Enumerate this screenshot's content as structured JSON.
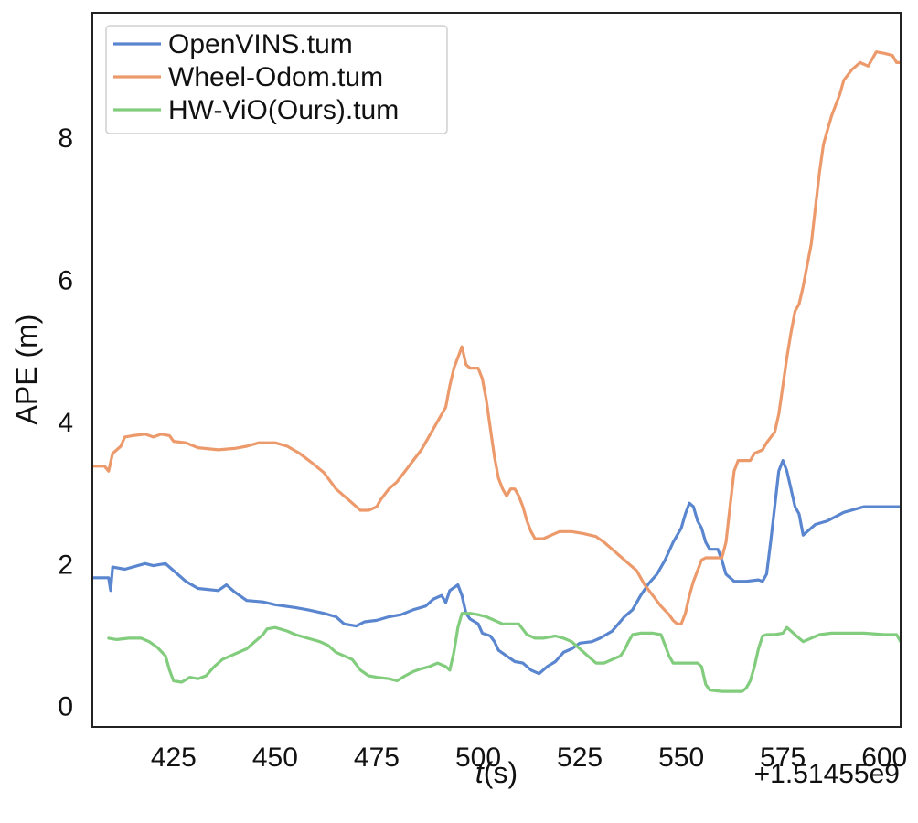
{
  "chart_data": {
    "type": "line",
    "title": "",
    "xlabel_italic": "t",
    "xlabel_rest": "(s)",
    "ylabel": "APE (m)",
    "x_offset_label": "+1.51455e9",
    "xlim": [
      405,
      604
    ],
    "ylim": [
      -0.3,
      9.75
    ],
    "xticks": [
      425,
      450,
      475,
      500,
      525,
      550,
      575,
      600
    ],
    "yticks": [
      0,
      2,
      4,
      6,
      8
    ],
    "grid": false,
    "legend_position": "top-left",
    "series": [
      {
        "name": "OpenVINS.tum",
        "color": "#5a86cf",
        "points": [
          [
            405,
            1.8
          ],
          [
            409,
            1.8
          ],
          [
            409.5,
            1.62
          ],
          [
            410,
            1.95
          ],
          [
            413,
            1.92
          ],
          [
            418,
            2.0
          ],
          [
            420,
            1.97
          ],
          [
            423,
            2.0
          ],
          [
            425,
            1.9
          ],
          [
            428,
            1.75
          ],
          [
            431,
            1.65
          ],
          [
            436,
            1.62
          ],
          [
            438,
            1.7
          ],
          [
            440,
            1.6
          ],
          [
            443,
            1.48
          ],
          [
            447,
            1.46
          ],
          [
            450,
            1.42
          ],
          [
            455,
            1.38
          ],
          [
            458,
            1.35
          ],
          [
            462,
            1.3
          ],
          [
            465,
            1.25
          ],
          [
            467,
            1.15
          ],
          [
            470,
            1.12
          ],
          [
            472,
            1.18
          ],
          [
            475,
            1.2
          ],
          [
            478,
            1.25
          ],
          [
            481,
            1.28
          ],
          [
            484,
            1.35
          ],
          [
            487,
            1.4
          ],
          [
            489,
            1.5
          ],
          [
            491,
            1.55
          ],
          [
            492,
            1.45
          ],
          [
            493,
            1.62
          ],
          [
            495,
            1.7
          ],
          [
            496,
            1.55
          ],
          [
            497,
            1.3
          ],
          [
            498,
            1.22
          ],
          [
            500,
            1.15
          ],
          [
            501,
            1.02
          ],
          [
            503,
            0.98
          ],
          [
            504,
            0.9
          ],
          [
            505,
            0.78
          ],
          [
            507,
            0.7
          ],
          [
            509,
            0.62
          ],
          [
            511,
            0.6
          ],
          [
            513,
            0.5
          ],
          [
            515,
            0.45
          ],
          [
            517,
            0.55
          ],
          [
            519,
            0.62
          ],
          [
            521,
            0.75
          ],
          [
            523,
            0.8
          ],
          [
            525,
            0.88
          ],
          [
            528,
            0.9
          ],
          [
            530,
            0.95
          ],
          [
            533,
            1.05
          ],
          [
            536,
            1.25
          ],
          [
            538,
            1.35
          ],
          [
            540,
            1.55
          ],
          [
            542,
            1.72
          ],
          [
            544,
            1.85
          ],
          [
            546,
            2.05
          ],
          [
            548,
            2.3
          ],
          [
            550,
            2.5
          ],
          [
            551,
            2.7
          ],
          [
            552,
            2.85
          ],
          [
            553,
            2.8
          ],
          [
            554,
            2.6
          ],
          [
            555,
            2.5
          ],
          [
            556,
            2.3
          ],
          [
            557,
            2.2
          ],
          [
            558,
            2.2
          ],
          [
            559,
            2.2
          ],
          [
            560,
            2.05
          ],
          [
            561,
            1.85
          ],
          [
            563,
            1.75
          ],
          [
            566,
            1.75
          ],
          [
            569,
            1.77
          ],
          [
            570,
            1.75
          ],
          [
            571,
            1.85
          ],
          [
            572,
            2.3
          ],
          [
            573,
            2.8
          ],
          [
            574,
            3.3
          ],
          [
            575,
            3.45
          ],
          [
            576,
            3.3
          ],
          [
            577,
            3.05
          ],
          [
            578,
            2.8
          ],
          [
            579,
            2.7
          ],
          [
            580,
            2.4
          ],
          [
            581,
            2.45
          ],
          [
            583,
            2.55
          ],
          [
            586,
            2.6
          ],
          [
            590,
            2.72
          ],
          [
            595,
            2.8
          ],
          [
            600,
            2.8
          ],
          [
            604,
            2.8
          ]
        ]
      },
      {
        "name": "Wheel-Odom.tum",
        "color": "#ec9a6b",
        "points": [
          [
            405,
            3.37
          ],
          [
            408,
            3.37
          ],
          [
            409,
            3.3
          ],
          [
            410,
            3.55
          ],
          [
            412,
            3.65
          ],
          [
            413,
            3.78
          ],
          [
            415,
            3.8
          ],
          [
            418,
            3.82
          ],
          [
            420,
            3.78
          ],
          [
            422,
            3.82
          ],
          [
            424,
            3.8
          ],
          [
            425,
            3.72
          ],
          [
            428,
            3.7
          ],
          [
            431,
            3.63
          ],
          [
            436,
            3.6
          ],
          [
            440,
            3.62
          ],
          [
            443,
            3.65
          ],
          [
            446,
            3.7
          ],
          [
            450,
            3.7
          ],
          [
            453,
            3.65
          ],
          [
            456,
            3.55
          ],
          [
            459,
            3.42
          ],
          [
            462,
            3.28
          ],
          [
            465,
            3.05
          ],
          [
            467,
            2.95
          ],
          [
            469,
            2.85
          ],
          [
            471,
            2.75
          ],
          [
            473,
            2.75
          ],
          [
            475,
            2.8
          ],
          [
            476,
            2.9
          ],
          [
            478,
            3.05
          ],
          [
            480,
            3.15
          ],
          [
            482,
            3.3
          ],
          [
            484,
            3.45
          ],
          [
            486,
            3.6
          ],
          [
            488,
            3.8
          ],
          [
            490,
            4.0
          ],
          [
            492,
            4.2
          ],
          [
            493,
            4.5
          ],
          [
            494,
            4.75
          ],
          [
            495,
            4.9
          ],
          [
            496,
            5.05
          ],
          [
            497,
            4.8
          ],
          [
            498,
            4.75
          ],
          [
            500,
            4.75
          ],
          [
            501,
            4.6
          ],
          [
            502,
            4.3
          ],
          [
            503,
            3.9
          ],
          [
            504,
            3.5
          ],
          [
            505,
            3.2
          ],
          [
            506,
            3.05
          ],
          [
            507,
            2.95
          ],
          [
            508,
            3.05
          ],
          [
            509,
            3.05
          ],
          [
            510,
            2.95
          ],
          [
            511,
            2.8
          ],
          [
            512,
            2.6
          ],
          [
            513,
            2.45
          ],
          [
            514,
            2.35
          ],
          [
            516,
            2.35
          ],
          [
            518,
            2.4
          ],
          [
            520,
            2.45
          ],
          [
            523,
            2.45
          ],
          [
            526,
            2.42
          ],
          [
            529,
            2.38
          ],
          [
            531,
            2.3
          ],
          [
            533,
            2.2
          ],
          [
            535,
            2.1
          ],
          [
            537,
            2.0
          ],
          [
            539,
            1.9
          ],
          [
            541,
            1.7
          ],
          [
            543,
            1.55
          ],
          [
            545,
            1.4
          ],
          [
            547,
            1.28
          ],
          [
            548,
            1.2
          ],
          [
            549,
            1.15
          ],
          [
            550,
            1.15
          ],
          [
            551,
            1.3
          ],
          [
            552,
            1.55
          ],
          [
            553,
            1.75
          ],
          [
            554,
            1.9
          ],
          [
            555,
            2.05
          ],
          [
            556,
            2.08
          ],
          [
            558,
            2.08
          ],
          [
            560,
            2.08
          ],
          [
            561,
            2.3
          ],
          [
            562,
            2.8
          ],
          [
            563,
            3.3
          ],
          [
            564,
            3.45
          ],
          [
            567,
            3.45
          ],
          [
            568,
            3.55
          ],
          [
            570,
            3.6
          ],
          [
            571,
            3.7
          ],
          [
            573,
            3.85
          ],
          [
            574,
            4.1
          ],
          [
            575,
            4.5
          ],
          [
            576,
            4.9
          ],
          [
            577,
            5.25
          ],
          [
            578,
            5.55
          ],
          [
            579,
            5.65
          ],
          [
            580,
            5.9
          ],
          [
            581,
            6.2
          ],
          [
            582,
            6.5
          ],
          [
            583,
            7.0
          ],
          [
            584,
            7.5
          ],
          [
            585,
            7.9
          ],
          [
            586,
            8.1
          ],
          [
            587,
            8.3
          ],
          [
            588,
            8.45
          ],
          [
            589,
            8.6
          ],
          [
            590,
            8.8
          ],
          [
            592,
            8.95
          ],
          [
            594,
            9.05
          ],
          [
            596,
            9.0
          ],
          [
            597,
            9.1
          ],
          [
            598,
            9.2
          ],
          [
            600,
            9.18
          ],
          [
            602,
            9.15
          ],
          [
            603,
            9.05
          ],
          [
            604,
            9.05
          ]
        ]
      },
      {
        "name": "HW-ViO(Ours).tum",
        "color": "#82cc7d",
        "points": [
          [
            409,
            0.95
          ],
          [
            411,
            0.93
          ],
          [
            414,
            0.95
          ],
          [
            417,
            0.95
          ],
          [
            419,
            0.9
          ],
          [
            421,
            0.82
          ],
          [
            423,
            0.7
          ],
          [
            424,
            0.5
          ],
          [
            425,
            0.35
          ],
          [
            427,
            0.33
          ],
          [
            429,
            0.4
          ],
          [
            431,
            0.38
          ],
          [
            433,
            0.42
          ],
          [
            435,
            0.55
          ],
          [
            437,
            0.65
          ],
          [
            439,
            0.7
          ],
          [
            441,
            0.75
          ],
          [
            443,
            0.8
          ],
          [
            445,
            0.9
          ],
          [
            447,
            1.0
          ],
          [
            448,
            1.08
          ],
          [
            450,
            1.1
          ],
          [
            453,
            1.05
          ],
          [
            455,
            1.0
          ],
          [
            458,
            0.95
          ],
          [
            461,
            0.9
          ],
          [
            463,
            0.85
          ],
          [
            465,
            0.75
          ],
          [
            467,
            0.7
          ],
          [
            469,
            0.65
          ],
          [
            471,
            0.5
          ],
          [
            473,
            0.42
          ],
          [
            475,
            0.4
          ],
          [
            478,
            0.38
          ],
          [
            480,
            0.35
          ],
          [
            482,
            0.42
          ],
          [
            484,
            0.48
          ],
          [
            486,
            0.52
          ],
          [
            488,
            0.55
          ],
          [
            490,
            0.6
          ],
          [
            492,
            0.55
          ],
          [
            493,
            0.5
          ],
          [
            494,
            0.75
          ],
          [
            495,
            1.1
          ],
          [
            496,
            1.3
          ],
          [
            498,
            1.3
          ],
          [
            500,
            1.28
          ],
          [
            502,
            1.25
          ],
          [
            504,
            1.2
          ],
          [
            506,
            1.15
          ],
          [
            508,
            1.15
          ],
          [
            510,
            1.15
          ],
          [
            512,
            1.0
          ],
          [
            514,
            0.95
          ],
          [
            516,
            0.95
          ],
          [
            519,
            0.98
          ],
          [
            521,
            0.95
          ],
          [
            523,
            0.9
          ],
          [
            525,
            0.8
          ],
          [
            527,
            0.7
          ],
          [
            529,
            0.6
          ],
          [
            531,
            0.6
          ],
          [
            533,
            0.65
          ],
          [
            535,
            0.7
          ],
          [
            536,
            0.78
          ],
          [
            537,
            0.9
          ],
          [
            538,
            1.0
          ],
          [
            540,
            1.02
          ],
          [
            543,
            1.02
          ],
          [
            545,
            1.0
          ],
          [
            546,
            0.85
          ],
          [
            547,
            0.7
          ],
          [
            548,
            0.6
          ],
          [
            551,
            0.6
          ],
          [
            554,
            0.6
          ],
          [
            555,
            0.55
          ],
          [
            556,
            0.3
          ],
          [
            557,
            0.22
          ],
          [
            560,
            0.2
          ],
          [
            563,
            0.2
          ],
          [
            565,
            0.2
          ],
          [
            566,
            0.25
          ],
          [
            567,
            0.35
          ],
          [
            568,
            0.55
          ],
          [
            569,
            0.8
          ],
          [
            570,
            0.98
          ],
          [
            571,
            1.0
          ],
          [
            573,
            1.0
          ],
          [
            575,
            1.02
          ],
          [
            576,
            1.1
          ],
          [
            577,
            1.05
          ],
          [
            578,
            1.0
          ],
          [
            579,
            0.95
          ],
          [
            580,
            0.9
          ],
          [
            582,
            0.95
          ],
          [
            584,
            1.0
          ],
          [
            587,
            1.02
          ],
          [
            590,
            1.02
          ],
          [
            595,
            1.02
          ],
          [
            600,
            1.0
          ],
          [
            603,
            1.0
          ],
          [
            604,
            0.9
          ]
        ]
      }
    ]
  }
}
